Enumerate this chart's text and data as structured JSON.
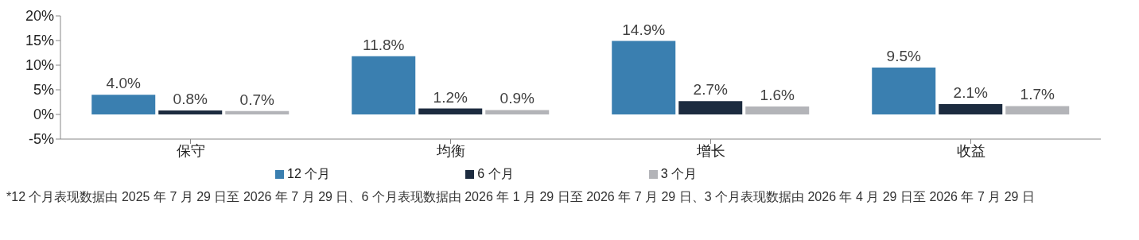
{
  "chart_data": {
    "type": "bar",
    "categories": [
      "保守",
      "均衡",
      "增长",
      "收益"
    ],
    "series": [
      {
        "name": "12 个月",
        "color": "#3a7fb0",
        "values": [
          4.0,
          11.8,
          14.9,
          9.5
        ],
        "value_labels": [
          "4.0%",
          "11.8%",
          "14.9%",
          "9.5%"
        ]
      },
      {
        "name": "6 个月",
        "color": "#1c2b3f",
        "values": [
          0.8,
          1.2,
          2.7,
          2.1
        ],
        "value_labels": [
          "0.8%",
          "1.2%",
          "2.7%",
          "2.1%"
        ]
      },
      {
        "name": "3 个月",
        "color": "#b3b4b8",
        "values": [
          0.7,
          0.9,
          1.6,
          1.7
        ],
        "value_labels": [
          "0.7%",
          "0.9%",
          "1.6%",
          "1.7%"
        ]
      }
    ],
    "ylim": [
      -5,
      20
    ],
    "yticks": [
      {
        "value": -5,
        "label": "-5%"
      },
      {
        "value": 0,
        "label": "0%"
      },
      {
        "value": 5,
        "label": "5%"
      },
      {
        "value": 10,
        "label": "10%"
      },
      {
        "value": 15,
        "label": "15%"
      },
      {
        "value": 20,
        "label": "20%"
      }
    ],
    "grid": false,
    "legend": "bottom",
    "annotations": [
      "*12 个月表现数据由 2025 年 7 月 29 日至 2026 年 7 月 29 日、6 个月表现数据由 2026 年 1 月 29 日至 2026 年 7 月 29 日、3 个月表现数据由 2026 年 4 月 29 日至 2026 年 7 月 29 日"
    ]
  }
}
